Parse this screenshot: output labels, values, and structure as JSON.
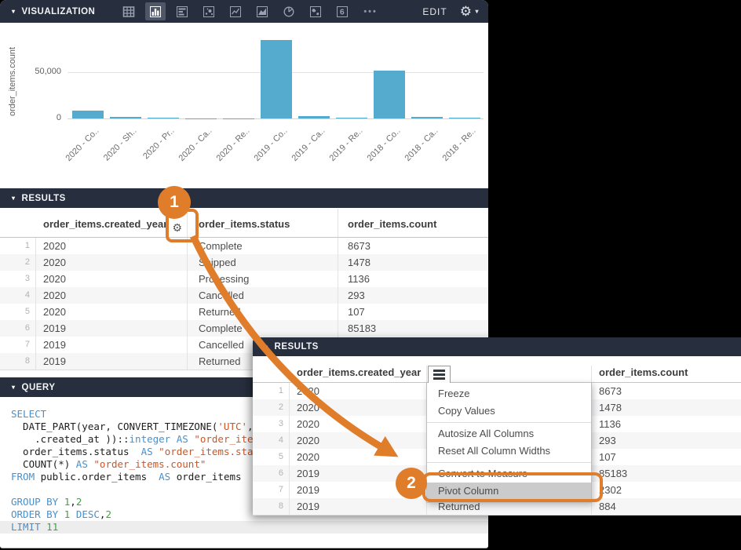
{
  "colors": {
    "accent_orange": "#e07d2b",
    "bar_blue": "#54abce",
    "panel_dark": "#272e3d",
    "menu_highlight_gray": "#cbcbcb"
  },
  "glyphs": {
    "caret_down": "▾",
    "gear": "⚙",
    "more": "•••"
  },
  "viz_toolbar": {
    "title": "VISUALIZATION",
    "edit_label": "EDIT",
    "more_label": "•••",
    "icons": [
      {
        "name": "table-icon",
        "selected": false
      },
      {
        "name": "column-chart-icon",
        "selected": true
      },
      {
        "name": "bar-chart-icon",
        "selected": false
      },
      {
        "name": "scatter-icon",
        "selected": false
      },
      {
        "name": "line-chart-icon",
        "selected": false
      },
      {
        "name": "area-chart-icon",
        "selected": false
      },
      {
        "name": "pie-chart-icon",
        "selected": false
      },
      {
        "name": "map-icon",
        "selected": false
      },
      {
        "name": "single-value-icon",
        "selected": false,
        "glyph": "6"
      }
    ]
  },
  "chart_data": {
    "type": "bar",
    "title": "",
    "xlabel": "",
    "ylabel": "order_items.count",
    "categories": [
      "2020 - Co..",
      "2020 - Sh..",
      "2020 - Pr..",
      "2020 - Ca..",
      "2020 - Re..",
      "2019 - Co..",
      "2019 - Ca..",
      "2019 - Re..",
      "2018 - Co..",
      "2018 - Ca..",
      "2018 - Re.."
    ],
    "values": [
      8673,
      1478,
      1136,
      293,
      107,
      85183,
      2302,
      884,
      52000,
      1700,
      850
    ],
    "yticks": [
      {
        "value": 0,
        "label": "0"
      },
      {
        "value": 50000,
        "label": "50,000"
      }
    ],
    "ylim": [
      0,
      90000
    ],
    "grid": "y-only",
    "legend_position": "none",
    "bar_color": "#54abce"
  },
  "results_panel": {
    "title": "RESULTS",
    "columns": [
      "order_items.created_year",
      "order_items.status",
      "order_items.count"
    ],
    "rows": [
      {
        "n": "1",
        "year": "2020",
        "status": "Complete",
        "count": "8673"
      },
      {
        "n": "2",
        "year": "2020",
        "status": "Shipped",
        "count": "1478"
      },
      {
        "n": "3",
        "year": "2020",
        "status": "Processing",
        "count": "1136"
      },
      {
        "n": "4",
        "year": "2020",
        "status": "Cancelled",
        "count": "293"
      },
      {
        "n": "5",
        "year": "2020",
        "status": "Returned",
        "count": "107"
      },
      {
        "n": "6",
        "year": "2019",
        "status": "Complete",
        "count": "85183"
      },
      {
        "n": "7",
        "year": "2019",
        "status": "Cancelled",
        "count": "2302"
      },
      {
        "n": "8",
        "year": "2019",
        "status": "Returned",
        "count": "884"
      }
    ]
  },
  "query_panel": {
    "title": "QUERY",
    "active_line": 9,
    "lines": [
      [
        [
          "kw",
          "SELECT"
        ]
      ],
      [
        [
          "pl",
          "  DATE_PART(year, CONVERT_TIMEZONE("
        ],
        [
          "str",
          "'UTC'"
        ],
        [
          "pl",
          ", "
        ],
        [
          "str",
          "'"
        ]
      ],
      [
        [
          "pl",
          "    .created_at ))::"
        ],
        [
          "kw",
          "integer"
        ],
        [
          "pl",
          " "
        ],
        [
          "kw",
          "AS"
        ],
        [
          "pl",
          " "
        ],
        [
          "str",
          "\"order_items.created_year\""
        ]
      ],
      [
        [
          "pl",
          "  order_items.status  "
        ],
        [
          "kw",
          "AS"
        ],
        [
          "pl",
          " "
        ],
        [
          "str",
          "\"order_items.status\""
        ]
      ],
      [
        [
          "pl",
          "  COUNT(*) "
        ],
        [
          "kw",
          "AS"
        ],
        [
          "pl",
          " "
        ],
        [
          "str",
          "\"order_items.count\""
        ]
      ],
      [
        [
          "kw",
          "FROM"
        ],
        [
          "pl",
          " public.order_items  "
        ],
        [
          "kw",
          "AS"
        ],
        [
          "pl",
          " order_items"
        ]
      ],
      [],
      [
        [
          "kw",
          "GROUP BY"
        ],
        [
          "pl",
          " "
        ],
        [
          "num",
          "1"
        ],
        [
          "pl",
          ","
        ],
        [
          "num",
          "2"
        ]
      ],
      [
        [
          "kw",
          "ORDER BY"
        ],
        [
          "pl",
          " "
        ],
        [
          "num",
          "1"
        ],
        [
          "pl",
          " "
        ],
        [
          "kw",
          "DESC"
        ],
        [
          "pl",
          ","
        ],
        [
          "num",
          "2"
        ]
      ],
      [
        [
          "kw",
          "LIMIT"
        ],
        [
          "pl",
          " "
        ],
        [
          "num",
          "11"
        ]
      ]
    ]
  },
  "overlay_results": {
    "title": "RESULTS",
    "columns": [
      "order_items.created_year",
      "order_items.count"
    ],
    "rows": [
      {
        "n": "1",
        "year": "2020",
        "status": "Complete",
        "count": "8673"
      },
      {
        "n": "2",
        "year": "2020",
        "status": "Shipped",
        "count": "1478"
      },
      {
        "n": "3",
        "year": "2020",
        "status": "Processing",
        "count": "1136"
      },
      {
        "n": "4",
        "year": "2020",
        "status": "Cancelled",
        "count": "293"
      },
      {
        "n": "5",
        "year": "2020",
        "status": "Returned",
        "count": "107"
      },
      {
        "n": "6",
        "year": "2019",
        "status": "Complete",
        "count": "85183"
      },
      {
        "n": "7",
        "year": "2019",
        "status": "Cancelled",
        "count": "2302"
      },
      {
        "n": "8",
        "year": "2019",
        "status": "Returned",
        "count": "884"
      }
    ],
    "menu": {
      "groups": [
        [
          "Freeze",
          "Copy Values"
        ],
        [
          "Autosize All Columns",
          "Reset All Column Widths"
        ],
        [
          "Convert to Measure",
          "Pivot Column"
        ]
      ],
      "highlighted": "Pivot Column"
    }
  },
  "annotations": {
    "step1": "1",
    "step2": "2"
  }
}
